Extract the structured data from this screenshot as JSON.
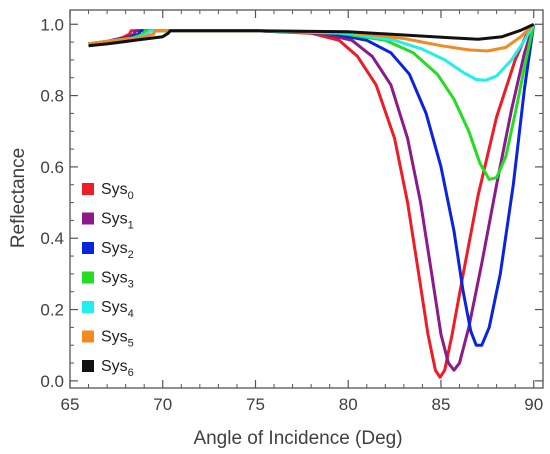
{
  "chart_data": {
    "type": "line",
    "title": "",
    "xlabel": "Angle of Incidence (Deg)",
    "ylabel": "Reflectance",
    "xlim": [
      65,
      90.5
    ],
    "ylim": [
      -0.02,
      1.04
    ],
    "x_ticks": [
      65,
      70,
      75,
      80,
      85,
      90
    ],
    "y_ticks": [
      0.0,
      0.2,
      0.4,
      0.6,
      0.8,
      1.0
    ],
    "x_tick_labels": [
      "65",
      "70",
      "75",
      "80",
      "85",
      "90"
    ],
    "y_tick_labels": [
      "0.0",
      "0.2",
      "0.4",
      "0.6",
      "0.8",
      "1.0"
    ],
    "grid": false,
    "legend_position": "left-bottom",
    "series": [
      {
        "name": "Sys",
        "subscript": "0",
        "color": "#ee1c24",
        "points": [
          [
            66.0,
            0.945
          ],
          [
            67.0,
            0.952
          ],
          [
            67.8,
            0.962
          ],
          [
            68.2,
            0.972
          ],
          [
            68.3,
            0.982
          ],
          [
            70.0,
            0.982
          ],
          [
            75.0,
            0.982
          ],
          [
            78.0,
            0.975
          ],
          [
            79.5,
            0.955
          ],
          [
            80.5,
            0.91
          ],
          [
            81.5,
            0.83
          ],
          [
            82.5,
            0.68
          ],
          [
            83.2,
            0.5
          ],
          [
            83.8,
            0.3
          ],
          [
            84.3,
            0.13
          ],
          [
            84.7,
            0.03
          ],
          [
            84.95,
            0.01
          ],
          [
            85.2,
            0.03
          ],
          [
            85.6,
            0.13
          ],
          [
            86.2,
            0.3
          ],
          [
            87.0,
            0.52
          ],
          [
            88.0,
            0.74
          ],
          [
            89.0,
            0.9
          ],
          [
            89.6,
            0.97
          ],
          [
            90.0,
            1.0
          ]
        ]
      },
      {
        "name": "Sys",
        "subscript": "1",
        "color": "#8b1a8b",
        "points": [
          [
            66.0,
            0.945
          ],
          [
            67.0,
            0.952
          ],
          [
            68.0,
            0.962
          ],
          [
            68.45,
            0.972
          ],
          [
            68.55,
            0.982
          ],
          [
            70.0,
            0.982
          ],
          [
            75.0,
            0.982
          ],
          [
            78.5,
            0.975
          ],
          [
            80.2,
            0.955
          ],
          [
            81.3,
            0.91
          ],
          [
            82.3,
            0.83
          ],
          [
            83.2,
            0.68
          ],
          [
            83.9,
            0.5
          ],
          [
            84.5,
            0.3
          ],
          [
            85.0,
            0.13
          ],
          [
            85.4,
            0.05
          ],
          [
            85.7,
            0.03
          ],
          [
            86.0,
            0.05
          ],
          [
            86.5,
            0.15
          ],
          [
            87.2,
            0.33
          ],
          [
            88.0,
            0.55
          ],
          [
            88.8,
            0.76
          ],
          [
            89.5,
            0.92
          ],
          [
            90.0,
            1.0
          ]
        ]
      },
      {
        "name": "Sys",
        "subscript": "2",
        "color": "#0a23e0",
        "points": [
          [
            66.0,
            0.945
          ],
          [
            67.0,
            0.952
          ],
          [
            68.2,
            0.962
          ],
          [
            68.7,
            0.972
          ],
          [
            68.8,
            0.982
          ],
          [
            70.0,
            0.982
          ],
          [
            75.0,
            0.982
          ],
          [
            79.0,
            0.975
          ],
          [
            81.0,
            0.955
          ],
          [
            82.3,
            0.92
          ],
          [
            83.3,
            0.86
          ],
          [
            84.2,
            0.75
          ],
          [
            85.0,
            0.6
          ],
          [
            85.7,
            0.42
          ],
          [
            86.2,
            0.25
          ],
          [
            86.6,
            0.14
          ],
          [
            86.9,
            0.1
          ],
          [
            87.2,
            0.1
          ],
          [
            87.6,
            0.15
          ],
          [
            88.2,
            0.3
          ],
          [
            88.9,
            0.55
          ],
          [
            89.5,
            0.82
          ],
          [
            90.0,
            1.0
          ]
        ]
      },
      {
        "name": "Sys",
        "subscript": "3",
        "color": "#22dd22",
        "points": [
          [
            66.0,
            0.945
          ],
          [
            67.0,
            0.952
          ],
          [
            68.4,
            0.962
          ],
          [
            68.95,
            0.972
          ],
          [
            69.05,
            0.982
          ],
          [
            70.0,
            0.982
          ],
          [
            75.0,
            0.982
          ],
          [
            79.5,
            0.975
          ],
          [
            82.0,
            0.955
          ],
          [
            83.5,
            0.92
          ],
          [
            84.8,
            0.86
          ],
          [
            85.7,
            0.79
          ],
          [
            86.5,
            0.7
          ],
          [
            87.1,
            0.61
          ],
          [
            87.6,
            0.565
          ],
          [
            88.0,
            0.57
          ],
          [
            88.5,
            0.63
          ],
          [
            89.0,
            0.75
          ],
          [
            89.5,
            0.88
          ],
          [
            90.0,
            1.0
          ]
        ]
      },
      {
        "name": "Sys",
        "subscript": "4",
        "color": "#22eeee",
        "points": [
          [
            66.0,
            0.945
          ],
          [
            67.0,
            0.952
          ],
          [
            68.6,
            0.962
          ],
          [
            69.2,
            0.972
          ],
          [
            69.3,
            0.982
          ],
          [
            70.0,
            0.982
          ],
          [
            75.0,
            0.982
          ],
          [
            80.0,
            0.975
          ],
          [
            82.5,
            0.955
          ],
          [
            84.0,
            0.93
          ],
          [
            85.2,
            0.9
          ],
          [
            86.2,
            0.865
          ],
          [
            86.9,
            0.845
          ],
          [
            87.4,
            0.843
          ],
          [
            88.0,
            0.855
          ],
          [
            88.8,
            0.9
          ],
          [
            89.5,
            0.955
          ],
          [
            90.0,
            1.0
          ]
        ]
      },
      {
        "name": "Sys",
        "subscript": "5",
        "color": "#f28a1e",
        "points": [
          [
            66.0,
            0.945
          ],
          [
            67.0,
            0.952
          ],
          [
            68.8,
            0.962
          ],
          [
            69.5,
            0.972
          ],
          [
            69.6,
            0.982
          ],
          [
            70.0,
            0.982
          ],
          [
            75.0,
            0.982
          ],
          [
            80.0,
            0.978
          ],
          [
            83.0,
            0.96
          ],
          [
            85.0,
            0.94
          ],
          [
            86.5,
            0.928
          ],
          [
            87.5,
            0.925
          ],
          [
            88.5,
            0.935
          ],
          [
            89.3,
            0.965
          ],
          [
            90.0,
            1.0
          ]
        ]
      },
      {
        "name": "Sys",
        "subscript": "6",
        "color": "#111111",
        "points": [
          [
            66.0,
            0.94
          ],
          [
            67.0,
            0.945
          ],
          [
            68.5,
            0.955
          ],
          [
            70.0,
            0.965
          ],
          [
            70.3,
            0.975
          ],
          [
            70.4,
            0.982
          ],
          [
            75.0,
            0.982
          ],
          [
            80.0,
            0.979
          ],
          [
            83.0,
            0.97
          ],
          [
            85.5,
            0.962
          ],
          [
            87.0,
            0.958
          ],
          [
            88.3,
            0.965
          ],
          [
            89.3,
            0.983
          ],
          [
            90.0,
            1.0
          ]
        ]
      }
    ]
  }
}
